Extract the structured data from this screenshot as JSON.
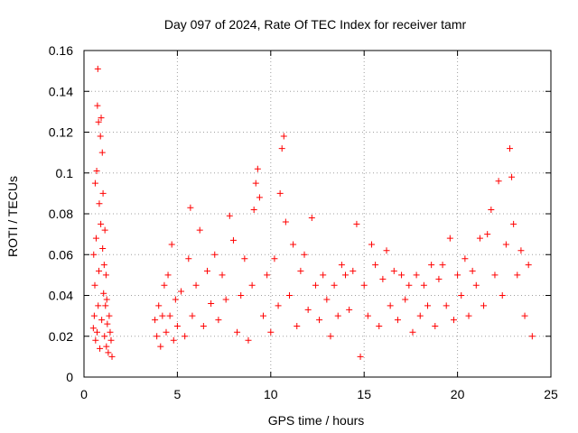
{
  "chart_data": {
    "type": "scatter",
    "title": "Day 097 of 2024, Rate Of TEC Index for receiver tamr",
    "xlabel": "GPS time / hours",
    "ylabel": "ROTI / TECUs",
    "xlim": [
      0,
      25
    ],
    "ylim": [
      0,
      0.16
    ],
    "xticks": [
      0,
      5,
      10,
      15,
      20,
      25
    ],
    "xtick_labels": [
      "0",
      "5",
      "10",
      "15",
      "20",
      "25"
    ],
    "yticks": [
      0,
      0.02,
      0.04,
      0.06,
      0.08,
      0.1,
      0.12,
      0.14,
      0.16
    ],
    "ytick_labels": [
      "0",
      "0.02",
      "0.04",
      "0.06",
      "0.08",
      "0.1",
      "0.12",
      "0.14",
      "0.16"
    ],
    "grid": true,
    "marker": "+",
    "color": "#ff0000",
    "points": [
      [
        0.5,
        0.024
      ],
      [
        0.52,
        0.06
      ],
      [
        0.55,
        0.03
      ],
      [
        0.58,
        0.045
      ],
      [
        0.6,
        0.095
      ],
      [
        0.62,
        0.018
      ],
      [
        0.65,
        0.068
      ],
      [
        0.68,
        0.101
      ],
      [
        0.7,
        0.022
      ],
      [
        0.72,
        0.133
      ],
      [
        0.74,
        0.151
      ],
      [
        0.76,
        0.035
      ],
      [
        0.78,
        0.125
      ],
      [
        0.8,
        0.052
      ],
      [
        0.82,
        0.085
      ],
      [
        0.85,
        0.014
      ],
      [
        0.88,
        0.118
      ],
      [
        0.9,
        0.075
      ],
      [
        0.92,
        0.127
      ],
      [
        0.95,
        0.028
      ],
      [
        0.98,
        0.11
      ],
      [
        1.0,
        0.063
      ],
      [
        1.02,
        0.09
      ],
      [
        1.05,
        0.041
      ],
      [
        1.08,
        0.055
      ],
      [
        1.1,
        0.02
      ],
      [
        1.12,
        0.072
      ],
      [
        1.15,
        0.035
      ],
      [
        1.18,
        0.05
      ],
      [
        1.2,
        0.015
      ],
      [
        1.22,
        0.038
      ],
      [
        1.25,
        0.026
      ],
      [
        1.3,
        0.012
      ],
      [
        1.35,
        0.03
      ],
      [
        1.4,
        0.022
      ],
      [
        1.45,
        0.018
      ],
      [
        1.5,
        0.01
      ],
      [
        3.8,
        0.028
      ],
      [
        3.9,
        0.02
      ],
      [
        4.0,
        0.035
      ],
      [
        4.1,
        0.015
      ],
      [
        4.2,
        0.03
      ],
      [
        4.3,
        0.045
      ],
      [
        4.4,
        0.022
      ],
      [
        4.5,
        0.05
      ],
      [
        4.6,
        0.03
      ],
      [
        4.7,
        0.065
      ],
      [
        4.8,
        0.018
      ],
      [
        4.9,
        0.038
      ],
      [
        5.0,
        0.025
      ],
      [
        5.2,
        0.042
      ],
      [
        5.4,
        0.02
      ],
      [
        5.6,
        0.058
      ],
      [
        5.7,
        0.083
      ],
      [
        5.8,
        0.03
      ],
      [
        6.0,
        0.045
      ],
      [
        6.2,
        0.072
      ],
      [
        6.4,
        0.025
      ],
      [
        6.6,
        0.052
      ],
      [
        6.8,
        0.036
      ],
      [
        7.0,
        0.06
      ],
      [
        7.2,
        0.028
      ],
      [
        7.4,
        0.05
      ],
      [
        7.6,
        0.038
      ],
      [
        7.8,
        0.079
      ],
      [
        8.0,
        0.067
      ],
      [
        8.2,
        0.022
      ],
      [
        8.4,
        0.04
      ],
      [
        8.6,
        0.058
      ],
      [
        8.8,
        0.018
      ],
      [
        9.0,
        0.045
      ],
      [
        9.1,
        0.082
      ],
      [
        9.2,
        0.095
      ],
      [
        9.3,
        0.102
      ],
      [
        9.4,
        0.088
      ],
      [
        9.6,
        0.03
      ],
      [
        9.8,
        0.05
      ],
      [
        10.0,
        0.022
      ],
      [
        10.2,
        0.058
      ],
      [
        10.4,
        0.035
      ],
      [
        10.5,
        0.09
      ],
      [
        10.6,
        0.112
      ],
      [
        10.7,
        0.118
      ],
      [
        10.8,
        0.076
      ],
      [
        11.0,
        0.04
      ],
      [
        11.2,
        0.065
      ],
      [
        11.4,
        0.025
      ],
      [
        11.6,
        0.052
      ],
      [
        11.8,
        0.06
      ],
      [
        12.0,
        0.033
      ],
      [
        12.2,
        0.078
      ],
      [
        12.4,
        0.045
      ],
      [
        12.6,
        0.028
      ],
      [
        12.8,
        0.05
      ],
      [
        13.0,
        0.038
      ],
      [
        13.2,
        0.02
      ],
      [
        13.4,
        0.045
      ],
      [
        13.6,
        0.03
      ],
      [
        13.8,
        0.055
      ],
      [
        14.0,
        0.05
      ],
      [
        14.2,
        0.033
      ],
      [
        14.4,
        0.052
      ],
      [
        14.6,
        0.075
      ],
      [
        14.8,
        0.01
      ],
      [
        15.0,
        0.045
      ],
      [
        15.2,
        0.03
      ],
      [
        15.4,
        0.065
      ],
      [
        15.6,
        0.055
      ],
      [
        15.8,
        0.025
      ],
      [
        16.0,
        0.048
      ],
      [
        16.2,
        0.062
      ],
      [
        16.4,
        0.035
      ],
      [
        16.6,
        0.052
      ],
      [
        16.8,
        0.028
      ],
      [
        17.0,
        0.05
      ],
      [
        17.2,
        0.038
      ],
      [
        17.4,
        0.045
      ],
      [
        17.6,
        0.022
      ],
      [
        17.8,
        0.05
      ],
      [
        18.0,
        0.03
      ],
      [
        18.2,
        0.045
      ],
      [
        18.4,
        0.035
      ],
      [
        18.6,
        0.055
      ],
      [
        18.8,
        0.025
      ],
      [
        19.0,
        0.048
      ],
      [
        19.2,
        0.055
      ],
      [
        19.4,
        0.035
      ],
      [
        19.6,
        0.068
      ],
      [
        19.8,
        0.028
      ],
      [
        20.0,
        0.05
      ],
      [
        20.2,
        0.04
      ],
      [
        20.4,
        0.058
      ],
      [
        20.6,
        0.03
      ],
      [
        20.8,
        0.052
      ],
      [
        21.0,
        0.045
      ],
      [
        21.2,
        0.068
      ],
      [
        21.4,
        0.035
      ],
      [
        21.6,
        0.07
      ],
      [
        21.8,
        0.082
      ],
      [
        22.0,
        0.05
      ],
      [
        22.2,
        0.096
      ],
      [
        22.4,
        0.04
      ],
      [
        22.6,
        0.065
      ],
      [
        22.8,
        0.112
      ],
      [
        22.9,
        0.098
      ],
      [
        23.0,
        0.075
      ],
      [
        23.2,
        0.05
      ],
      [
        23.4,
        0.062
      ],
      [
        23.6,
        0.03
      ],
      [
        23.8,
        0.055
      ],
      [
        24.0,
        0.02
      ]
    ]
  }
}
